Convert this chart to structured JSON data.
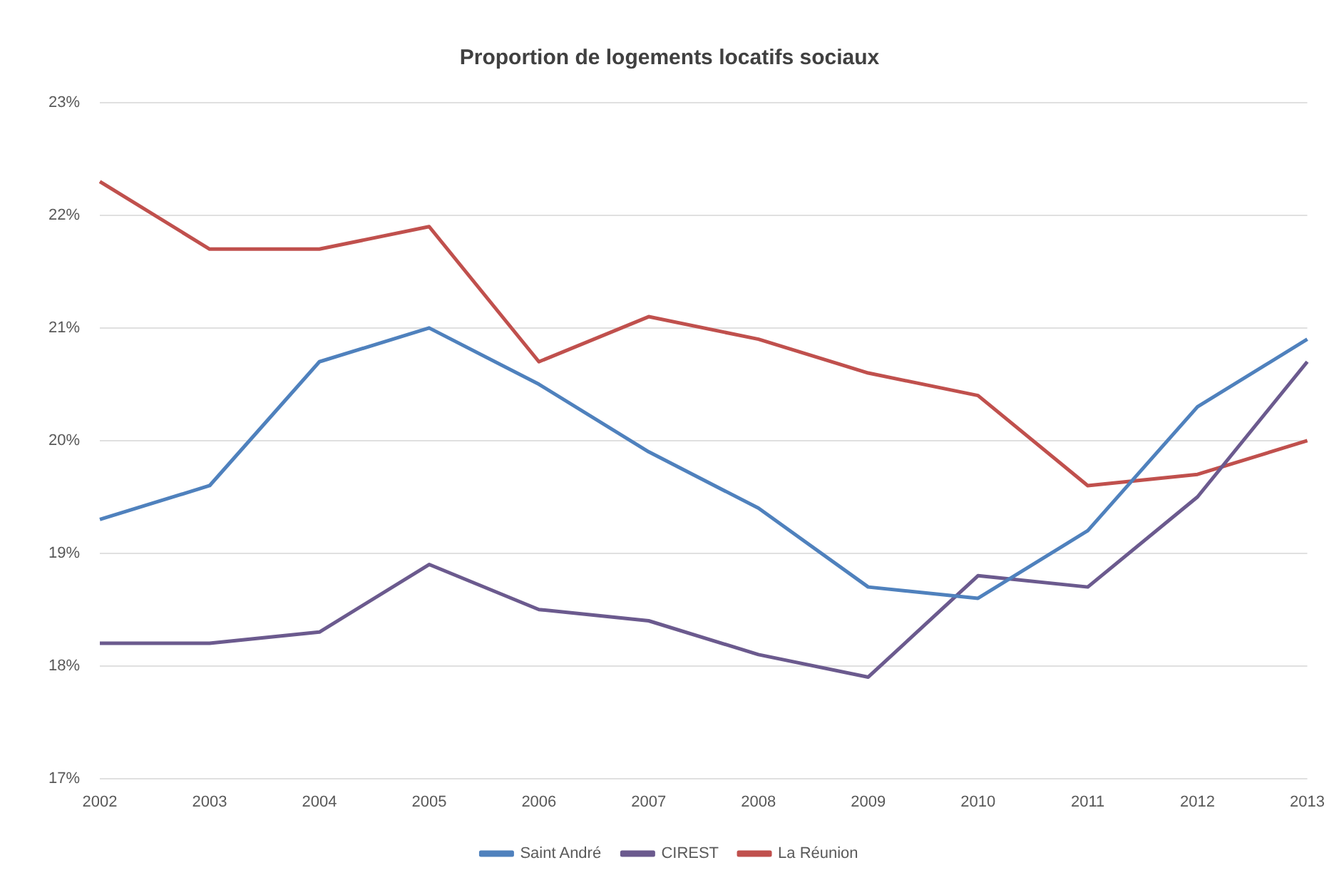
{
  "chart_data": {
    "type": "line",
    "title": "Proportion de logements locatifs sociaux",
    "categories": [
      "2002",
      "2003",
      "2004",
      "2005",
      "2006",
      "2007",
      "2008",
      "2009",
      "2010",
      "2011",
      "2012",
      "2013"
    ],
    "series": [
      {
        "name": "Saint André",
        "color": "#4f81bd",
        "values": [
          19.3,
          19.6,
          20.7,
          21.0,
          20.5,
          19.9,
          19.4,
          18.7,
          18.6,
          19.2,
          20.3,
          20.9
        ]
      },
      {
        "name": "CIREST",
        "color": "#6b5a8e",
        "values": [
          18.2,
          18.2,
          18.3,
          18.9,
          18.5,
          18.4,
          18.1,
          17.9,
          18.8,
          18.7,
          19.5,
          20.7
        ]
      },
      {
        "name": "La Réunion",
        "color": "#c0504d",
        "values": [
          22.3,
          21.7,
          21.7,
          21.9,
          20.7,
          21.1,
          20.9,
          20.6,
          20.4,
          19.6,
          19.7,
          20.0
        ]
      }
    ],
    "ylim": [
      17,
      23
    ],
    "yticks": [
      {
        "value": 17,
        "label": "17%"
      },
      {
        "value": 18,
        "label": "18%"
      },
      {
        "value": 19,
        "label": "19%"
      },
      {
        "value": 20,
        "label": "20%"
      },
      {
        "value": 21,
        "label": "21%"
      },
      {
        "value": 22,
        "label": "22%"
      },
      {
        "value": 23,
        "label": "23%"
      }
    ],
    "grid": "y",
    "legend": "bottom",
    "marker": "none",
    "line_style": "solid"
  }
}
